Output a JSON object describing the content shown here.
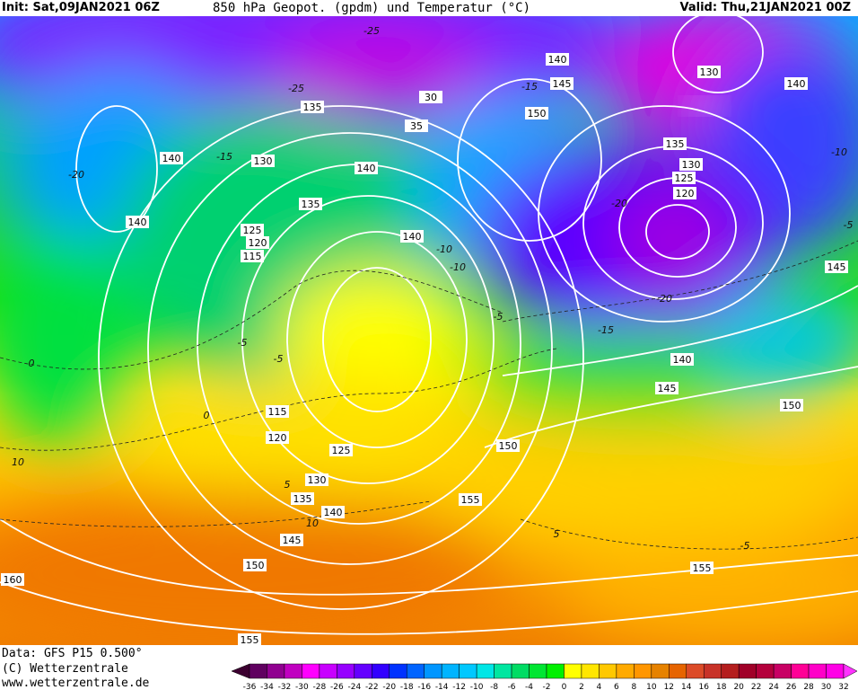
{
  "header": {
    "init": "Init: Sat,09JAN2021 06Z",
    "title": "850 hPa Geopot. (gpdm) und Temperatur (°C)",
    "valid": "Valid: Thu,21JAN2021 00Z"
  },
  "map": {
    "geopotential_labels": [
      "140",
      "145",
      "130",
      "140",
      "135",
      "30",
      "150",
      "35",
      "140",
      "130",
      "135",
      "130",
      "125",
      "120",
      "140",
      "135",
      "140",
      "125",
      "120",
      "115",
      "140",
      "145",
      "140",
      "145",
      "150",
      "115",
      "120",
      "125",
      "150",
      "130",
      "135",
      "155",
      "140",
      "145",
      "150",
      "155",
      "160",
      "155"
    ],
    "temperature_labels": [
      "-25",
      "-25",
      "-20",
      "-15",
      "-20",
      "-15",
      "-10",
      "-15",
      "-20",
      "-10",
      "-5",
      "0",
      "-5",
      "-10",
      "-5",
      "0",
      "5",
      "10",
      "-5",
      "10",
      "-5",
      "5"
    ],
    "contour_color": "#ffffff"
  },
  "footer": {
    "data": "Data: GFS P15 0.500°",
    "copyright": "(C) Wetterzentrale",
    "url": "www.wetterzentrale.de"
  },
  "legend": {
    "ticks": [
      "-36",
      "-34",
      "-32",
      "-30",
      "-28",
      "-26",
      "-24",
      "-22",
      "-20",
      "-18",
      "-16",
      "-14",
      "-12",
      "-10",
      "-8",
      "-6",
      "-4",
      "-2",
      "0",
      "2",
      "4",
      "6",
      "8",
      "10",
      "12",
      "14",
      "16",
      "18",
      "20",
      "22",
      "24",
      "26",
      "28",
      "30",
      "32"
    ],
    "colors": [
      "#600060",
      "#900090",
      "#c000c0",
      "#ff00ff",
      "#c800ff",
      "#9600ff",
      "#6400ff",
      "#3200ff",
      "#0032ff",
      "#0064ff",
      "#0096ff",
      "#00b4ff",
      "#00c8ff",
      "#00e6e6",
      "#00e6a0",
      "#00dc64",
      "#00e632",
      "#00f000",
      "#ffff00",
      "#ffe600",
      "#ffc800",
      "#ffaa00",
      "#ff9600",
      "#e68200",
      "#e66400",
      "#dc4b28",
      "#c83228",
      "#b41e1e",
      "#a00028",
      "#b4003c",
      "#c80064",
      "#ff0096",
      "#ff00c8",
      "#ff00e6"
    ],
    "low_arrow_color": "#3c0030",
    "high_arrow_color": "#ff32ff"
  }
}
